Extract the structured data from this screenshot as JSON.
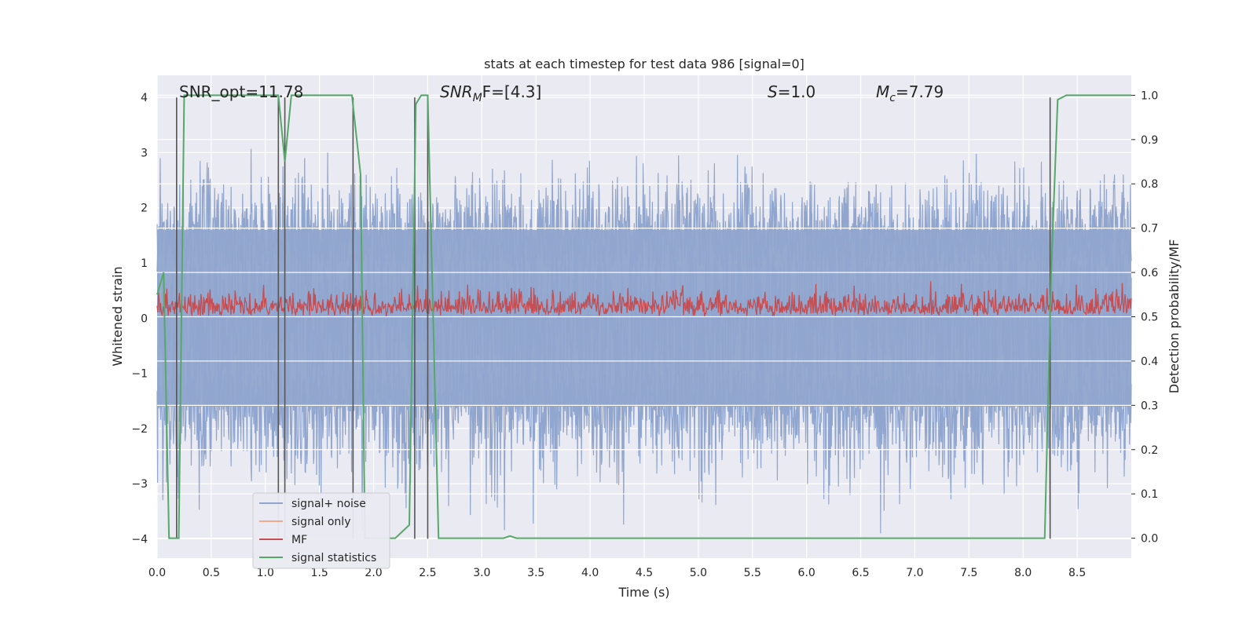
{
  "chart_data": {
    "type": "line",
    "title": "stats at each timestep for test data 986 [signal=0]",
    "xlabel": "Time (s)",
    "ylabel": "Whitened strain",
    "ylabel_right": "Detection probability/MF",
    "xlim": [
      0.0,
      9.0
    ],
    "ylim": [
      -4.35,
      4.4
    ],
    "ylim_right": [
      -0.045,
      1.045
    ],
    "xticks": [
      "0.0",
      "0.5",
      "1.0",
      "1.5",
      "2.0",
      "2.5",
      "3.0",
      "3.5",
      "4.0",
      "4.5",
      "5.0",
      "5.5",
      "6.0",
      "6.5",
      "7.0",
      "7.5",
      "8.0",
      "8.5"
    ],
    "xtick_values": [
      0.0,
      0.5,
      1.0,
      1.5,
      2.0,
      2.5,
      3.0,
      3.5,
      4.0,
      4.5,
      5.0,
      5.5,
      6.0,
      6.5,
      7.0,
      7.5,
      8.0,
      8.5
    ],
    "yticks": [
      "−4",
      "−3",
      "−2",
      "−1",
      "0",
      "1",
      "2",
      "3",
      "4"
    ],
    "ytick_values": [
      -4,
      -3,
      -2,
      -1,
      0,
      1,
      2,
      3,
      4
    ],
    "yticks_right": [
      "0.0",
      "0.1",
      "0.2",
      "0.3",
      "0.4",
      "0.5",
      "0.6",
      "0.7",
      "0.8",
      "0.9",
      "1.0"
    ],
    "ytick_right_values": [
      0.0,
      0.1,
      0.2,
      0.3,
      0.4,
      0.5,
      0.6,
      0.7,
      0.8,
      0.9,
      1.0
    ],
    "grid": true,
    "legend_position": "bottom-left",
    "annotations": {
      "snr_opt": "SNR_opt=11.78",
      "snr_mf_base": "SNR",
      "snr_mf_sub": "M",
      "snr_mf_rest": "F=[4.3]",
      "s_base": "S",
      "s_rest": "=1.0",
      "mc_base": "M",
      "mc_sub": "c",
      "mc_rest": "=7.79"
    },
    "series": [
      {
        "name": "signal+ noise",
        "color": "#91a6ce",
        "kind": "noise band",
        "envelope_typical": [
          -1.6,
          1.6
        ],
        "envelope_extreme": [
          -4.0,
          4.0
        ],
        "axis": "left"
      },
      {
        "name": "signal only",
        "color": "#f0a98c",
        "kind": "not visible",
        "axis": "left"
      },
      {
        "name": "MF",
        "color": "#c44e52",
        "kind": "noise band",
        "range": [
          0.5,
          0.62
        ],
        "axis": "right"
      },
      {
        "name": "signal statistics",
        "color": "#55a868",
        "axis": "right",
        "x": [
          0.0,
          0.06,
          0.11,
          0.2,
          0.25,
          1.12,
          1.18,
          1.24,
          1.8,
          1.88,
          1.92,
          2.2,
          2.33,
          2.39,
          2.44,
          2.5,
          2.6,
          3.2,
          3.26,
          3.32,
          8.2,
          8.26,
          8.32,
          8.4,
          9.0
        ],
        "y": [
          0.55,
          0.6,
          0.0,
          0.0,
          1.0,
          1.0,
          0.85,
          1.0,
          1.0,
          0.82,
          0.0,
          0.0,
          0.03,
          0.98,
          1.0,
          1.0,
          0.0,
          0.0,
          0.005,
          0.0,
          0.0,
          0.6,
          0.99,
          1.0,
          1.0
        ]
      }
    ],
    "vertical_markers_x": [
      0.18,
      1.12,
      1.18,
      1.81,
      2.38,
      2.5,
      8.25
    ]
  },
  "legend": {
    "items": [
      {
        "label": "signal+ noise",
        "color": "#91a6ce"
      },
      {
        "label": "signal only",
        "color": "#f0a98c"
      },
      {
        "label": "MF",
        "color": "#c44e52"
      },
      {
        "label": "signal statistics",
        "color": "#55a868"
      }
    ]
  },
  "colors": {
    "plot_background": "#eaeaf2",
    "grid": "#ffffff",
    "marker_line": "#555555"
  }
}
